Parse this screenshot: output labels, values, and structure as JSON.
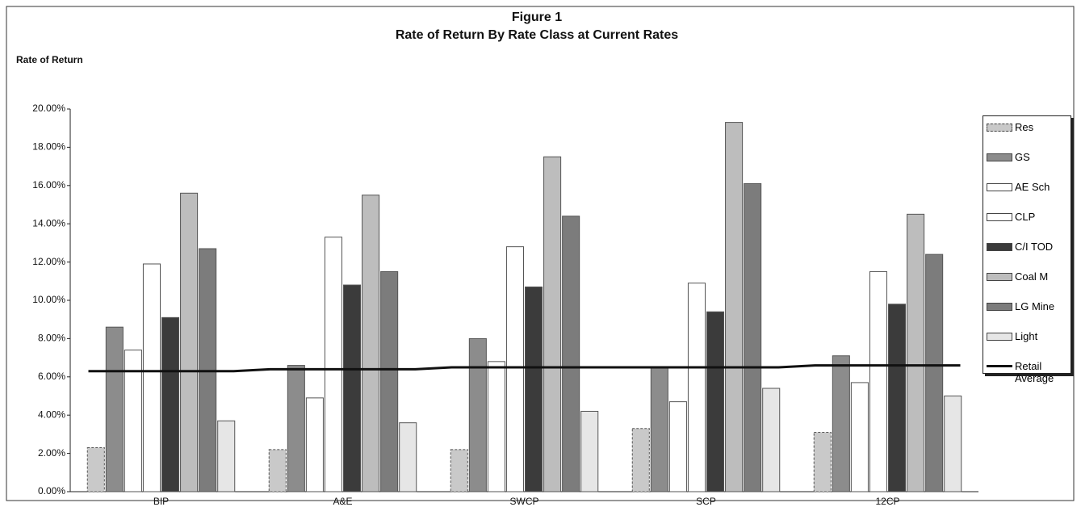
{
  "chart_data": {
    "type": "bar",
    "title": "Figure 1",
    "subtitle": "Rate of Return By Rate Class at Current Rates",
    "y_label": "Rate of Return",
    "categories": [
      "BIP",
      "A&E",
      "SWCP",
      "SCP",
      "12CP"
    ],
    "series": [
      {
        "name": "Res",
        "color": "#c9c9c9",
        "values": [
          2.3,
          2.2,
          2.2,
          3.3,
          3.1
        ]
      },
      {
        "name": "GS",
        "color": "#8c8c8c",
        "values": [
          8.6,
          6.6,
          8.0,
          6.5,
          7.1
        ]
      },
      {
        "name": "AE Sch",
        "color": "#ffffff",
        "values": [
          7.4,
          4.9,
          6.8,
          4.7,
          5.7
        ]
      },
      {
        "name": "CLP",
        "color": "#ffffff",
        "values": [
          11.9,
          13.3,
          12.8,
          10.9,
          11.5
        ]
      },
      {
        "name": "C/I TOD",
        "color": "#3b3b3b",
        "values": [
          9.1,
          10.8,
          10.7,
          9.4,
          9.8
        ]
      },
      {
        "name": "Coal M",
        "color": "#bdbdbd",
        "values": [
          15.6,
          15.5,
          17.5,
          19.3,
          14.5
        ]
      },
      {
        "name": "LG Mine",
        "color": "#7c7c7c",
        "values": [
          12.7,
          11.5,
          14.4,
          16.1,
          12.4
        ]
      },
      {
        "name": "Light",
        "color": "#e6e6e6",
        "values": [
          3.7,
          3.6,
          4.2,
          5.4,
          5.0
        ]
      },
      {
        "name": "Retail Average",
        "color": "#111111",
        "type": "line",
        "values": [
          6.3,
          6.4,
          6.5,
          6.5,
          6.6
        ]
      }
    ],
    "ylim": [
      0,
      20
    ],
    "yticks": [
      {
        "value": 0,
        "label": "0.00%"
      },
      {
        "value": 2,
        "label": "2.00%"
      },
      {
        "value": 4,
        "label": "4.00%"
      },
      {
        "value": 6,
        "label": "6.00%"
      },
      {
        "value": 8,
        "label": "8.00%"
      },
      {
        "value": 10,
        "label": "10.00%"
      },
      {
        "value": 12,
        "label": "12.00%"
      },
      {
        "value": 14,
        "label": "14.00%"
      },
      {
        "value": 16,
        "label": "16.00%"
      },
      {
        "value": 18,
        "label": "18.00%"
      },
      {
        "value": 20,
        "label": "20.00%"
      }
    ],
    "legend": "right"
  }
}
